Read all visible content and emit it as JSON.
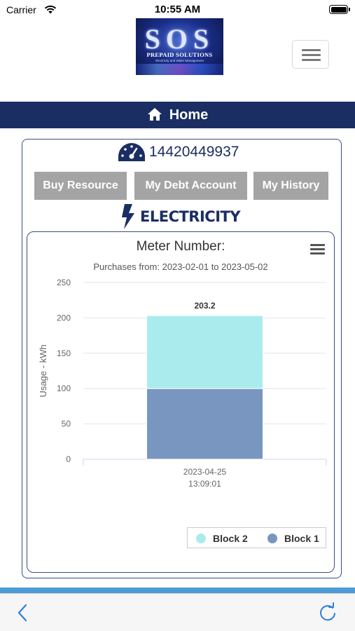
{
  "status_bar": {
    "carrier": "Carrier",
    "time": "10:55 AM"
  },
  "logo": {
    "mark": "SOS",
    "title": "PREPAID SOLUTIONS",
    "subtitle": "Electricity and Water Management"
  },
  "header": {
    "title": "Home"
  },
  "meter": {
    "number": "14420449937",
    "icon": "speedometer-icon"
  },
  "actions": {
    "buy_label": "Buy Resource",
    "debt_label": "My Debt Account",
    "history_label": "My History"
  },
  "service": {
    "label": "ELECTRICITY",
    "icon": "lightning-bolt-icon"
  },
  "chart": {
    "title": "Meter Number:",
    "subtitle": "Purchases from: 2023-02-01 to 2023-05-02"
  },
  "chart_data": {
    "type": "bar",
    "stacked": true,
    "categories": [
      [
        "2023-04-25",
        "13:09:01"
      ]
    ],
    "series": [
      {
        "name": "Block 1",
        "values": [
          100
        ],
        "color": "#7896c0"
      },
      {
        "name": "Block 2",
        "values": [
          103.2
        ],
        "color": "#aaeced"
      }
    ],
    "total_labels": [
      "203.2"
    ],
    "title": "Meter Number:",
    "subtitle": "Purchases from: 2023-02-01 to 2023-05-02",
    "xlabel": "",
    "ylabel": "Usage - kWh",
    "ylim": [
      0,
      250
    ],
    "yticks": [
      0,
      50,
      100,
      150,
      200,
      250
    ],
    "grid": true,
    "legend": {
      "placement": "bottom-right",
      "order": [
        "Block 2",
        "Block 1"
      ]
    }
  },
  "colors": {
    "navy": "#1b2e63",
    "button_gray": "#a4a4a4",
    "stripe_blue": "#4b9bd8"
  }
}
